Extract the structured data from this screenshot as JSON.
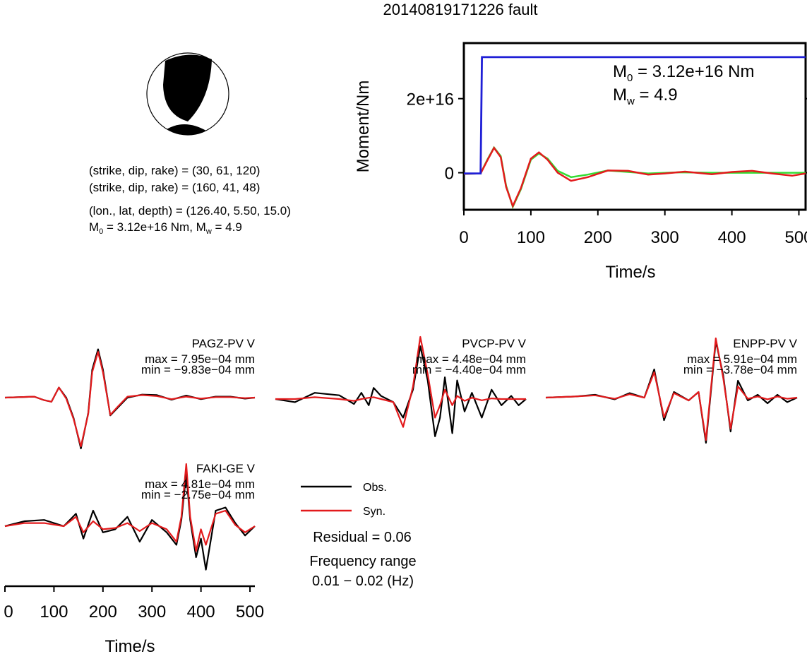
{
  "title": "20140819171226 fault",
  "mechanism": {
    "nodal_plane_1": "(strike, dip, rake) = (30, 61, 120)",
    "nodal_plane_2": "(strike, dip, rake) = (160, 41, 48)",
    "location": "(lon., lat, depth) = (126.40, 5.50, 15.0)",
    "moment_line_prefix": "M",
    "moment_line_mid": " = 3.12e+16 Nm, M",
    "moment_line_tail": " = 4.9",
    "sub0": "0",
    "subw": "w"
  },
  "colors": {
    "obs": "#000000",
    "syn": "#e31a1c",
    "moment": "#1f1fd6",
    "stf_green": "#33dd33"
  },
  "chart_data": [
    {
      "type": "line",
      "name": "moment-function",
      "xlabel": "Time/s",
      "ylabel": "Moment/Nm",
      "xlim": [
        0,
        510
      ],
      "ylim": [
        -1e+16,
        3.5e+16
      ],
      "xticks": [
        "0",
        "100",
        "200",
        "300",
        "400",
        "500"
      ],
      "yticks": [
        {
          "value": 0,
          "label": "0"
        },
        {
          "value": 2e+16,
          "label": "2e+16"
        }
      ],
      "annotation": {
        "m0_prefix": "M",
        "m0_sub": "0",
        "m0_tail": " = 3.12e+16 Nm",
        "mw_prefix": "M",
        "mw_sub": "w",
        "mw_tail": " = 4.9"
      },
      "moment": {
        "x": [
          0,
          25,
          27,
          510
        ],
        "y": [
          -200000000000000.0,
          -200000000000000.0,
          3.12e+16,
          3.12e+16
        ]
      },
      "curves": [
        {
          "color": "stf_green",
          "x": [
            0,
            25,
            35,
            45,
            55,
            63,
            73,
            85,
            100,
            112,
            125,
            140,
            160,
            185,
            215,
            245,
            275,
            320,
            370,
            430,
            510
          ],
          "y": [
            -300000000000000.0,
            -200000000000000.0,
            3500000000000000.0,
            6800000000000000.0,
            4500000000000000.0,
            -3500000000000000.0,
            -9200000000000000.0,
            -4500000000000000.0,
            3500000000000000.0,
            5200000000000000.0,
            3800000000000000.0,
            500000000000000.0,
            -1200000000000000.0,
            -500000000000000.0,
            600000000000000.0,
            200000000000000.0,
            -200000000000000.0,
            100000000000000.0,
            0.0,
            0.0,
            0.0
          ]
        },
        {
          "color": "syn",
          "x": [
            0,
            25,
            35,
            45,
            55,
            63,
            73,
            85,
            100,
            112,
            125,
            140,
            160,
            185,
            215,
            245,
            275,
            300,
            330,
            370,
            400,
            430,
            460,
            490,
            510
          ],
          "y": [
            -300000000000000.0,
            -200000000000000.0,
            3300000000000000.0,
            6700000000000000.0,
            4200000000000000.0,
            -3800000000000000.0,
            -9000000000000000.0,
            -4200000000000000.0,
            3800000000000000.0,
            5500000000000000.0,
            3500000000000000.0,
            0.0,
            -2200000000000000.0,
            -1200000000000000.0,
            600000000000000.0,
            500000000000000.0,
            -500000000000000.0,
            -200000000000000.0,
            300000000000000.0,
            -400000000000000.0,
            200000000000000.0,
            500000000000000.0,
            -200000000000000.0,
            -800000000000000.0,
            -200000000000000.0
          ]
        }
      ]
    },
    {
      "type": "line",
      "name": "waveform-fits",
      "xlabel": "Time/s",
      "xlim": [
        0,
        510
      ],
      "xticks": [
        "0",
        "100",
        "200",
        "300",
        "400",
        "500"
      ],
      "legend": {
        "obs": "Obs.",
        "syn": "Syn.",
        "placement": "center"
      },
      "residual": "Residual = 0.06",
      "freq_label": "Frequency range",
      "freq_value": "0.01 − 0.02 (Hz)",
      "stations": [
        {
          "id": "PAGZ-PV V",
          "max": "max = 7.95e−04 mm",
          "min": "min = −9.83e−04 mm",
          "x": [
            0,
            60,
            80,
            95,
            110,
            125,
            140,
            155,
            170,
            178,
            190,
            200,
            215,
            230,
            250,
            280,
            310,
            340,
            370,
            400,
            430,
            460,
            490,
            510
          ],
          "obs": [
            0,
            0.02,
            -0.05,
            -0.08,
            0.2,
            0.0,
            -0.4,
            -1.0,
            -0.3,
            0.55,
            0.95,
            0.55,
            -0.35,
            -0.2,
            0.0,
            0.06,
            0.05,
            -0.04,
            0.04,
            -0.03,
            0.02,
            0.02,
            -0.02,
            0.0
          ],
          "syn": [
            0,
            0.02,
            -0.05,
            -0.08,
            0.2,
            -0.02,
            -0.42,
            -0.96,
            -0.32,
            0.5,
            0.9,
            0.5,
            -0.34,
            -0.18,
            0.02,
            0.05,
            0.03,
            -0.03,
            0.02,
            -0.02,
            0.01,
            0.01,
            -0.01,
            0.0
          ]
        },
        {
          "id": "PVCP-PV V",
          "max": "max = 4.48e−04 mm",
          "min": "min = −4.40e−04 mm",
          "x": [
            0,
            40,
            80,
            130,
            160,
            175,
            190,
            200,
            215,
            240,
            260,
            280,
            295,
            310,
            325,
            335,
            345,
            360,
            370,
            385,
            400,
            420,
            440,
            460,
            480,
            495,
            510
          ],
          "obs": [
            0,
            -0.05,
            0.1,
            0.06,
            -0.08,
            0.1,
            -0.1,
            0.18,
            0.05,
            -0.05,
            -0.3,
            0.15,
            0.85,
            0.3,
            -0.6,
            -0.3,
            0.35,
            -0.55,
            0.3,
            -0.2,
            0.1,
            -0.3,
            0.15,
            -0.1,
            0.05,
            -0.1,
            0.0
          ],
          "syn": [
            0,
            0.0,
            0.03,
            0.0,
            -0.03,
            0.0,
            0.02,
            0.03,
            0.0,
            -0.05,
            -0.45,
            0.2,
            1.0,
            0.4,
            -0.3,
            -0.1,
            0.15,
            -0.1,
            0.05,
            -0.03,
            0.02,
            -0.02,
            0.01,
            0.0,
            0.0,
            0.0,
            0.0
          ]
        },
        {
          "id": "ENPP-PV V",
          "max": "max = 5.91e−04 mm",
          "min": "min = −3.78e−04 mm",
          "x": [
            0,
            60,
            100,
            140,
            170,
            200,
            220,
            240,
            260,
            290,
            310,
            325,
            345,
            360,
            375,
            390,
            410,
            430,
            450,
            470,
            490,
            510
          ],
          "obs": [
            0,
            0.02,
            0.05,
            -0.03,
            0.08,
            0.0,
            0.5,
            -0.4,
            0.1,
            -0.05,
            0.1,
            -0.8,
            1.0,
            0.4,
            -0.6,
            0.3,
            -0.05,
            0.05,
            -0.1,
            0.05,
            -0.08,
            0.0
          ],
          "syn": [
            0,
            0.02,
            0.04,
            -0.02,
            0.06,
            0.0,
            0.45,
            -0.35,
            0.08,
            -0.05,
            0.1,
            -0.75,
            1.05,
            0.35,
            -0.55,
            0.2,
            -0.02,
            0.02,
            -0.03,
            0.02,
            -0.02,
            0.0
          ]
        },
        {
          "id": "FAKI-GE V",
          "max": "max = 4.81e−04 mm",
          "min": "min = −2.75e−04 mm",
          "x": [
            0,
            40,
            80,
            120,
            145,
            160,
            180,
            200,
            225,
            250,
            275,
            300,
            330,
            350,
            360,
            370,
            378,
            390,
            400,
            410,
            430,
            450,
            470,
            490,
            510
          ],
          "obs": [
            0,
            0.08,
            0.1,
            0.0,
            0.2,
            -0.2,
            0.25,
            -0.1,
            -0.05,
            0.15,
            -0.25,
            0.1,
            -0.1,
            -0.3,
            0.1,
            0.85,
            0.1,
            -0.5,
            -0.2,
            -0.7,
            0.25,
            0.3,
            0.05,
            -0.15,
            0.0
          ],
          "syn": [
            0,
            0.05,
            0.05,
            0.0,
            0.15,
            -0.1,
            0.08,
            -0.05,
            -0.03,
            0.05,
            -0.08,
            0.05,
            -0.05,
            -0.25,
            0.15,
            1.0,
            0.15,
            -0.4,
            -0.05,
            -0.3,
            0.2,
            0.25,
            0.02,
            -0.1,
            0.0
          ]
        }
      ]
    }
  ]
}
